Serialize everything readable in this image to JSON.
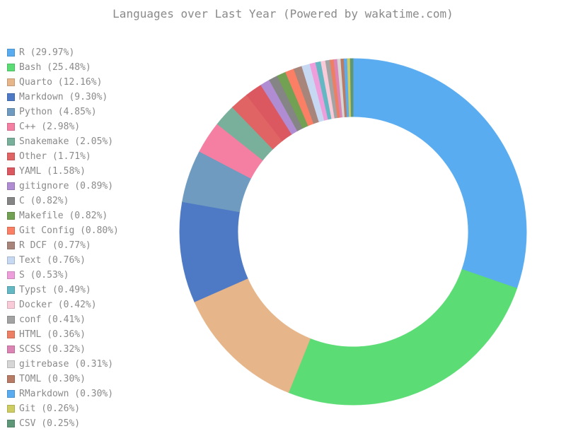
{
  "chart_data": {
    "type": "pie",
    "donut": true,
    "title": "Languages over Last Year (Powered by wakatime.com)",
    "legend_position": "left",
    "slices": [
      {
        "label": "R (29.97%)",
        "value": 29.97,
        "color": "#5aacf0"
      },
      {
        "label": "Bash (25.48%)",
        "value": 25.48,
        "color": "#5bdc74"
      },
      {
        "label": "Quarto (12.16%)",
        "value": 12.16,
        "color": "#e6b58a"
      },
      {
        "label": "Markdown (9.30%)",
        "value": 9.3,
        "color": "#4e79c4"
      },
      {
        "label": "Python (4.85%)",
        "value": 4.85,
        "color": "#6f9bc0"
      },
      {
        "label": "C++ (2.98%)",
        "value": 2.98,
        "color": "#f47fa2"
      },
      {
        "label": "Snakemake (2.05%)",
        "value": 2.05,
        "color": "#79b09b"
      },
      {
        "label": "Other (1.71%)",
        "value": 1.71,
        "color": "#e06464"
      },
      {
        "label": "YAML (1.58%)",
        "value": 1.58,
        "color": "#dc5860"
      },
      {
        "label": "gitignore (0.89%)",
        "value": 0.89,
        "color": "#b08cd3"
      },
      {
        "label": "C (0.82%)",
        "value": 0.82,
        "color": "#858585"
      },
      {
        "label": "Makefile (0.82%)",
        "value": 0.82,
        "color": "#72a153"
      },
      {
        "label": "Git Config (0.80%)",
        "value": 0.8,
        "color": "#fa7f64"
      },
      {
        "label": "R DCF (0.77%)",
        "value": 0.77,
        "color": "#a7857a"
      },
      {
        "label": "Text (0.76%)",
        "value": 0.76,
        "color": "#c7d8f2"
      },
      {
        "label": "S (0.53%)",
        "value": 0.53,
        "color": "#ee9fdb"
      },
      {
        "label": "Typst (0.49%)",
        "value": 0.49,
        "color": "#63b8c4"
      },
      {
        "label": "Docker (0.42%)",
        "value": 0.42,
        "color": "#f9cbd9"
      },
      {
        "label": "conf (0.41%)",
        "value": 0.41,
        "color": "#a3a3a3"
      },
      {
        "label": "HTML (0.36%)",
        "value": 0.36,
        "color": "#ec7f64"
      },
      {
        "label": "SCSS (0.32%)",
        "value": 0.32,
        "color": "#dc84b4"
      },
      {
        "label": "gitrebase (0.31%)",
        "value": 0.31,
        "color": "#d6d6d6"
      },
      {
        "label": "TOML (0.30%)",
        "value": 0.3,
        "color": "#b77b66"
      },
      {
        "label": "RMarkdown (0.30%)",
        "value": 0.3,
        "color": "#5aacf0"
      },
      {
        "label": "Git (0.26%)",
        "value": 0.26,
        "color": "#cdcd62"
      },
      {
        "label": "CSV (0.25%)",
        "value": 0.25,
        "color": "#5e9777"
      }
    ]
  }
}
